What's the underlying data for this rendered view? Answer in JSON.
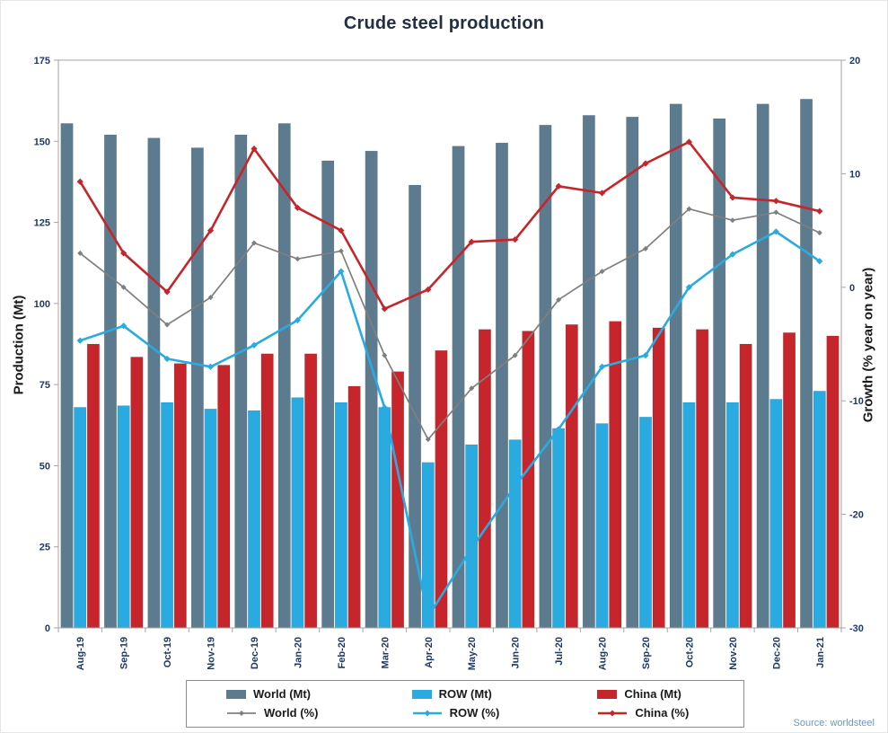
{
  "title": "Crude steel production",
  "source_note": "Source: worldsteel",
  "axes": {
    "left_label": "Production (Mt)",
    "right_label": "Growth (% year on year)"
  },
  "colors": {
    "world_bar": "#5d7b8e",
    "row_bar": "#29abe2",
    "china_bar": "#c6252b",
    "world_line": "#7f7f7f",
    "row_line": "#29abe2",
    "china_line": "#c6252b",
    "tick_text": "#1f3864",
    "axis_line": "#a6a6a6",
    "title_text": "#233044",
    "source_text": "#6e96c8"
  },
  "chart_data": {
    "type": "combo_bar_line",
    "title": "Crude steel production",
    "grid": false,
    "legend_position": "bottom",
    "categories": [
      "Aug-19",
      "Sep-19",
      "Oct-19",
      "Nov-19",
      "Dec-19",
      "Jan-20",
      "Feb-20",
      "Mar-20",
      "Apr-20",
      "May-20",
      "Jun-20",
      "Jul-20",
      "Aug-20",
      "Sep-20",
      "Oct-20",
      "Nov-20",
      "Dec-20",
      "Jan-21"
    ],
    "left_axis": {
      "label": "Production (Mt)",
      "min": 0,
      "max": 175,
      "ticks": [
        0,
        25,
        50,
        75,
        100,
        125,
        150,
        175
      ]
    },
    "right_axis": {
      "label": "Growth (% year on year)",
      "min": -30,
      "max": 20,
      "ticks": [
        -30,
        -20,
        -10,
        0,
        10,
        20
      ]
    },
    "bar_series": [
      {
        "name": "World (Mt)",
        "axis": "left",
        "color": "#5d7b8e",
        "values": [
          155.5,
          152,
          151,
          148,
          152,
          155.5,
          144,
          147,
          136.5,
          148.5,
          149.5,
          155,
          158,
          157.5,
          161.5,
          157,
          161.5,
          163
        ]
      },
      {
        "name": "ROW (Mt)",
        "axis": "left",
        "color": "#29abe2",
        "values": [
          68,
          68.5,
          69.5,
          67.5,
          67,
          71,
          69.5,
          68,
          51,
          56.5,
          58,
          61.5,
          63,
          65,
          69.5,
          69.5,
          70.5,
          73
        ]
      },
      {
        "name": "China (Mt)",
        "axis": "left",
        "color": "#c6252b",
        "values": [
          87.5,
          83.5,
          81.5,
          81,
          84.5,
          84.5,
          74.5,
          79,
          85.5,
          92,
          91.5,
          93.5,
          94.5,
          92.5,
          92,
          87.5,
          91,
          90
        ]
      }
    ],
    "line_series": [
      {
        "name": "World (%)",
        "axis": "right",
        "color": "#7f7f7f",
        "values": [
          3.0,
          0.0,
          -3.3,
          -0.9,
          3.9,
          2.5,
          3.2,
          -6.0,
          -13.4,
          -8.9,
          -6.0,
          -1.1,
          1.4,
          3.4,
          6.9,
          5.9,
          6.6,
          4.8
        ]
      },
      {
        "name": "ROW (%)",
        "axis": "right",
        "color": "#29abe2",
        "values": [
          -4.7,
          -3.4,
          -6.3,
          -7.0,
          -5.1,
          -2.9,
          1.4,
          -10.6,
          -29.0,
          -23.0,
          -17.5,
          -12.5,
          -7.0,
          -6.0,
          0.0,
          2.9,
          4.9,
          2.3
        ]
      },
      {
        "name": "China (%)",
        "axis": "right",
        "color": "#c6252b",
        "values": [
          9.3,
          3.0,
          -0.4,
          5.0,
          12.2,
          7.0,
          5.0,
          -1.9,
          -0.2,
          4.0,
          4.2,
          8.9,
          8.3,
          10.9,
          12.8,
          7.9,
          7.6,
          6.7
        ]
      }
    ]
  }
}
